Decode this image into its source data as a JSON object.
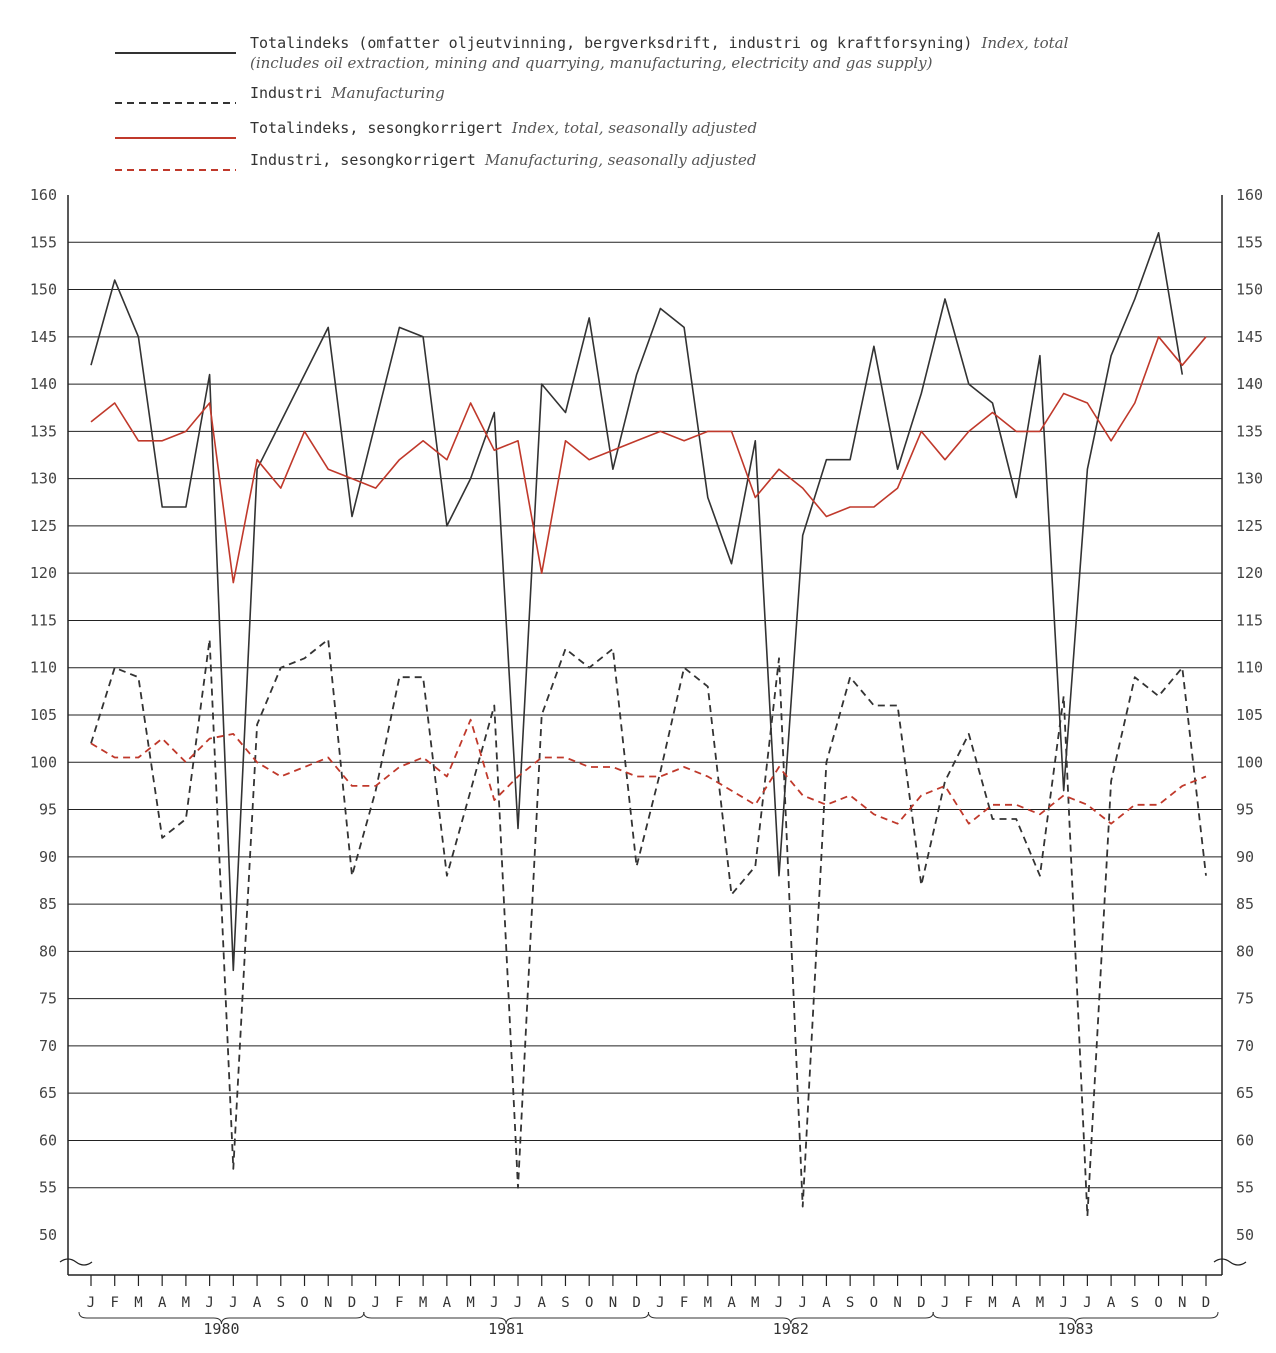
{
  "chart_data": {
    "type": "line",
    "legend": [
      {
        "no": "Totalindeks (omfatter oljeutvinning, bergverksdrift, industri og kraftforsyning)",
        "en": "Index, total",
        "no2": "",
        "en2": "(includes oil extraction, mining and quarrying, manufacturing, electricity and gas supply)",
        "color": "#333333",
        "style": "solid"
      },
      {
        "no": "Industri",
        "en": "Manufacturing",
        "color": "#333333",
        "style": "dashed"
      },
      {
        "no": "Totalindeks, sesongkorrigert",
        "en": "Index, total, seasonally adjusted",
        "color": "#c0392b",
        "style": "solid"
      },
      {
        "no": "Industri, sesongkorrigert",
        "en": "Manufacturing, seasonally adjusted",
        "color": "#c0392b",
        "style": "dashed"
      }
    ],
    "y_ticks": [
      "160",
      "155",
      "150",
      "145",
      "140",
      "135",
      "130",
      "125",
      "120",
      "115",
      "110",
      "105",
      "100",
      "95",
      "90",
      "85",
      "80",
      "75",
      "70",
      "65",
      "60",
      "55",
      "50"
    ],
    "ylim": [
      50,
      160
    ],
    "month_labels": [
      "J",
      "F",
      "M",
      "A",
      "M",
      "J",
      "J",
      "A",
      "S",
      "O",
      "N",
      "D",
      "J",
      "F",
      "M",
      "A",
      "M",
      "J",
      "J",
      "A",
      "S",
      "O",
      "N",
      "D",
      "J",
      "F",
      "M",
      "A",
      "M",
      "J",
      "J",
      "A",
      "S",
      "O",
      "N",
      "D",
      "J",
      "F",
      "M",
      "A",
      "M",
      "J",
      "J",
      "A",
      "S",
      "O",
      "N",
      "D"
    ],
    "years": [
      "1980",
      "1981",
      "1982",
      "1983"
    ],
    "series": [
      {
        "name": "Totalindeks",
        "color": "#333333",
        "dash": false,
        "values": [
          142,
          151,
          145,
          127,
          127,
          141,
          78,
          131,
          136,
          141,
          146,
          126,
          136,
          146,
          145,
          125,
          130,
          137,
          93,
          140,
          137,
          147,
          131,
          141,
          148,
          146,
          128,
          121,
          134,
          88,
          124,
          132,
          132,
          144,
          131,
          139,
          149,
          140,
          138,
          128,
          143,
          97,
          131,
          143,
          149,
          156,
          141,
          null
        ]
      },
      {
        "name": "Industri",
        "color": "#333333",
        "dash": true,
        "values": [
          102,
          110,
          109,
          92,
          94,
          113,
          57,
          104,
          110,
          111,
          113,
          88,
          97,
          109,
          109,
          88,
          97,
          106,
          55,
          105,
          112,
          110,
          112,
          89,
          99,
          110,
          108,
          86,
          89,
          111,
          53,
          100,
          109,
          106,
          106,
          87,
          98,
          103,
          94,
          94,
          88,
          107,
          52,
          98,
          109,
          107,
          110,
          88
        ]
      },
      {
        "name": "Totalindeks, sesongkorrigert",
        "color": "#c0392b",
        "dash": false,
        "values": [
          136,
          138,
          134,
          134,
          135,
          138,
          119,
          132,
          129,
          135,
          131,
          130,
          129,
          132,
          134,
          132,
          138,
          133,
          134,
          120,
          134,
          132,
          133,
          134,
          135,
          134,
          135,
          135,
          128,
          131,
          129,
          126,
          127,
          127,
          129,
          135,
          132,
          135,
          137,
          135,
          135,
          139,
          138,
          134,
          138,
          145,
          142,
          145
        ]
      },
      {
        "name": "Industri, sesongkorrigert",
        "color": "#c0392b",
        "dash": true,
        "values": [
          102,
          100.5,
          100.5,
          102.5,
          100,
          102.5,
          103,
          100,
          98.5,
          99.5,
          100.5,
          97.5,
          97.5,
          99.5,
          100.5,
          98.5,
          104.5,
          96,
          98.5,
          100.5,
          100.5,
          99.5,
          99.5,
          98.5,
          98.5,
          99.5,
          98.5,
          97,
          95.5,
          99.5,
          96.5,
          95.5,
          96.5,
          94.5,
          93.5,
          96.5,
          97.5,
          93.5,
          95.5,
          95.5,
          94.5,
          96.5,
          95.5,
          93.5,
          95.5,
          95.5,
          97.5,
          98.5
        ]
      }
    ]
  }
}
